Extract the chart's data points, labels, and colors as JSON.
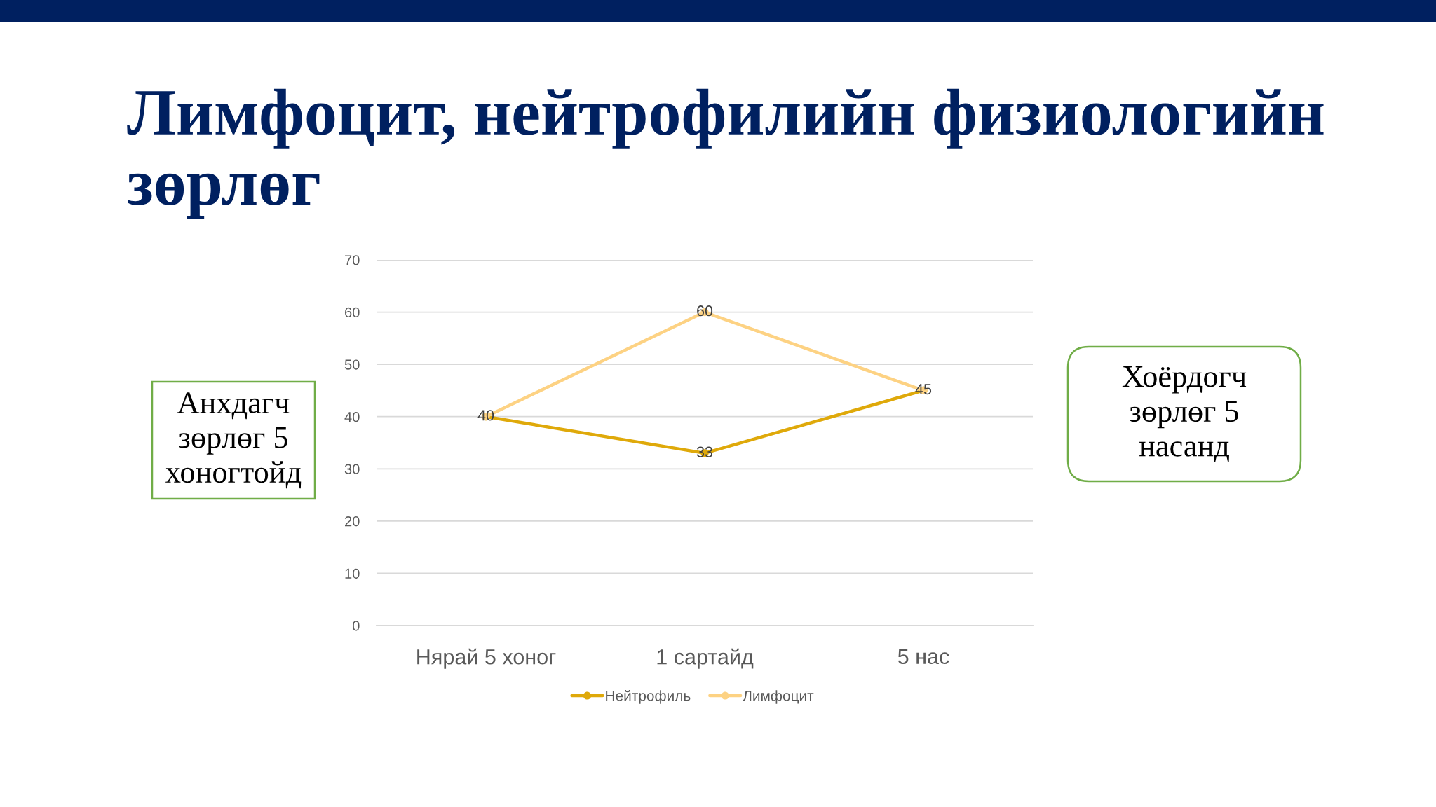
{
  "chart_data": {
    "type": "line",
    "title": "Лимфоцит, нейтрофилийн физиологийн зөрлөг",
    "categories": [
      "Нярай 5 хоног",
      "1 сартайд",
      "5 нас"
    ],
    "series": [
      {
        "name": "Нейтрофиль",
        "color": "#dfa90a",
        "values": [
          40,
          33,
          45
        ],
        "value_labels": [
          "40",
          "33",
          "45"
        ]
      },
      {
        "name": "Лимфоцит",
        "color": "#fdd283",
        "values": [
          40,
          60,
          45
        ],
        "value_labels": [
          null,
          "60",
          null
        ]
      }
    ],
    "ylim": [
      0,
      70
    ],
    "yticks": [
      0,
      10,
      20,
      30,
      40,
      50,
      60,
      70
    ],
    "grid": "y",
    "legend": "bottom",
    "marker": "circle",
    "line_style": "solid",
    "annotations": [
      "Анхдагч зөрлөг 5 хоногтойд",
      "Хоёрдогч зөрлөг 5 насанд"
    ]
  }
}
